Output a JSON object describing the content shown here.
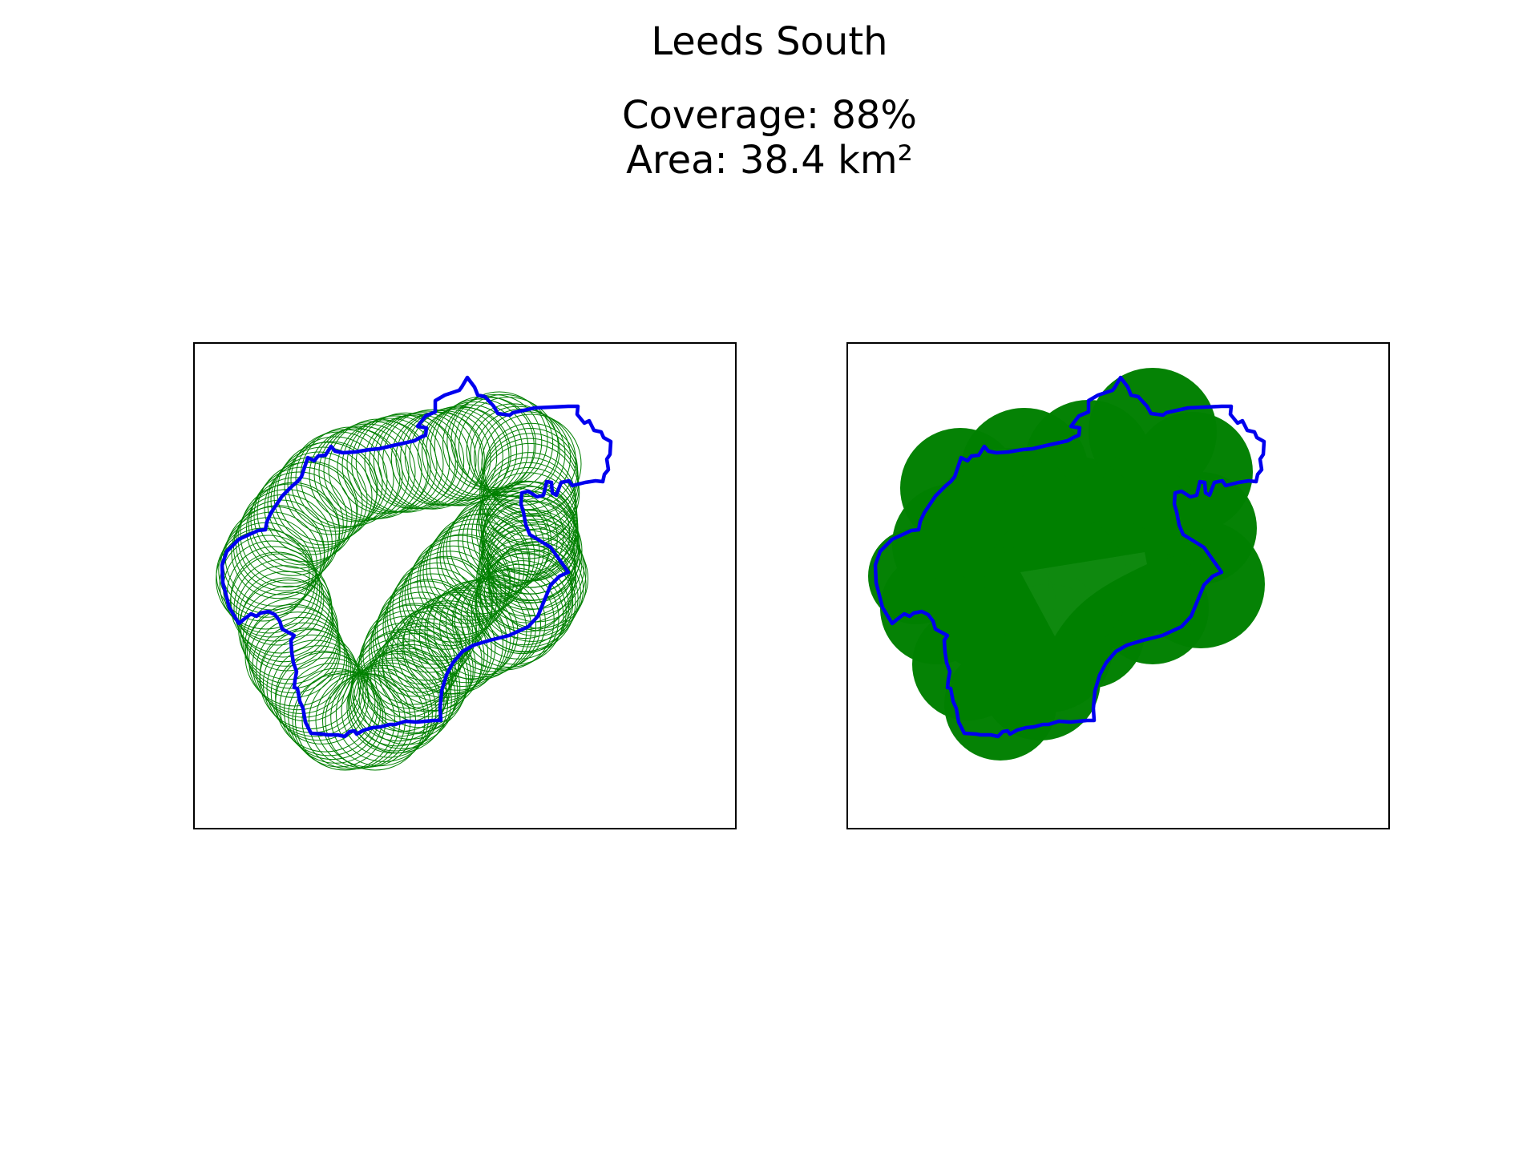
{
  "figure": {
    "title": "Leeds South",
    "coverage_text": "Coverage: 88%",
    "area_text": "Area: 38.4 km²"
  },
  "colors": {
    "boundary": "#0000ee",
    "coverage": "#008000",
    "frame": "#000000"
  },
  "panels": [
    {
      "id": "left",
      "style": "outline-circles"
    },
    {
      "id": "right",
      "style": "filled-circles"
    }
  ]
}
